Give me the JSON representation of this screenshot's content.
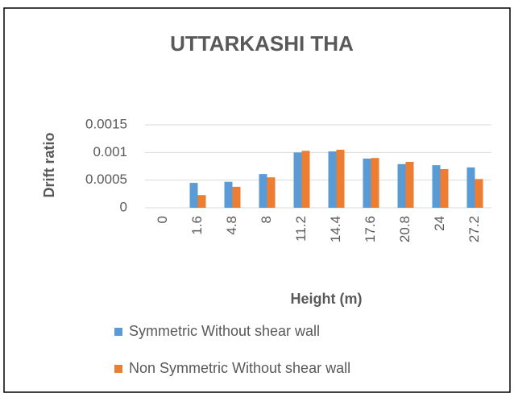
{
  "chart_data": {
    "type": "bar",
    "title": "UTTARKASHI THA",
    "x_label": "Height (m)",
    "y_label": "Drift ratio",
    "categories": [
      "0",
      "1.6",
      "4.8",
      "8",
      "11.2",
      "14.4",
      "17.6",
      "20.8",
      "24",
      "27.2"
    ],
    "series": [
      {
        "name": "Symmetric Without shear wall",
        "color": "#5b9bd5",
        "values": [
          0,
          0.00045,
          0.00047,
          0.00061,
          0.001,
          0.00102,
          0.00089,
          0.00079,
          0.00077,
          0.00073
        ]
      },
      {
        "name": "Non Symmetric Without shear wall",
        "color": "#ed7d31",
        "values": [
          0,
          0.00023,
          0.00038,
          0.00055,
          0.00103,
          0.00105,
          0.0009,
          0.00083,
          0.0007,
          0.00052
        ]
      }
    ],
    "ylim": [
      0,
      0.0015
    ],
    "yticks": [
      0,
      0.0005,
      0.001,
      0.0015
    ],
    "grid": true
  }
}
